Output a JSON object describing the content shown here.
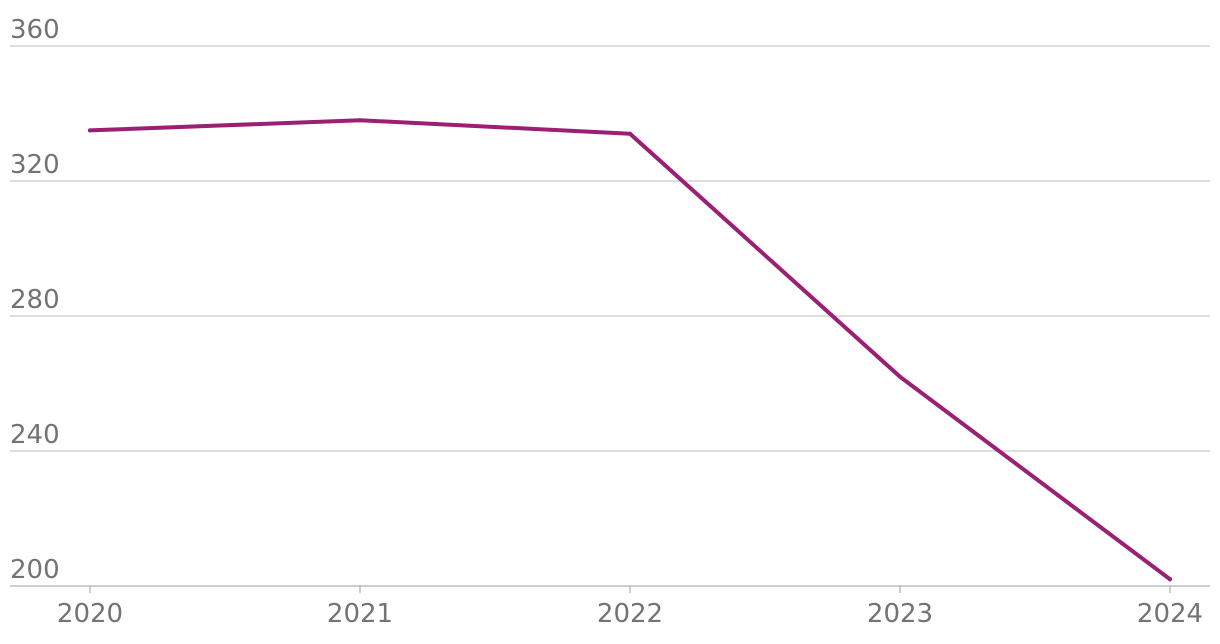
{
  "chart_data": {
    "type": "line",
    "title": "",
    "xlabel": "",
    "ylabel": "",
    "x": [
      "2020",
      "2021",
      "2022",
      "2023",
      "2024"
    ],
    "series": [
      {
        "values": [
          335,
          338,
          334,
          262,
          202
        ]
      }
    ],
    "ylim": [
      200,
      360
    ],
    "yticks": [
      "360",
      "320",
      "280",
      "240",
      "200"
    ],
    "grid": true,
    "legend": "none",
    "colors": {
      "line": "#9b1f73",
      "grid": "#bdbdbd",
      "text": "#737373"
    }
  }
}
